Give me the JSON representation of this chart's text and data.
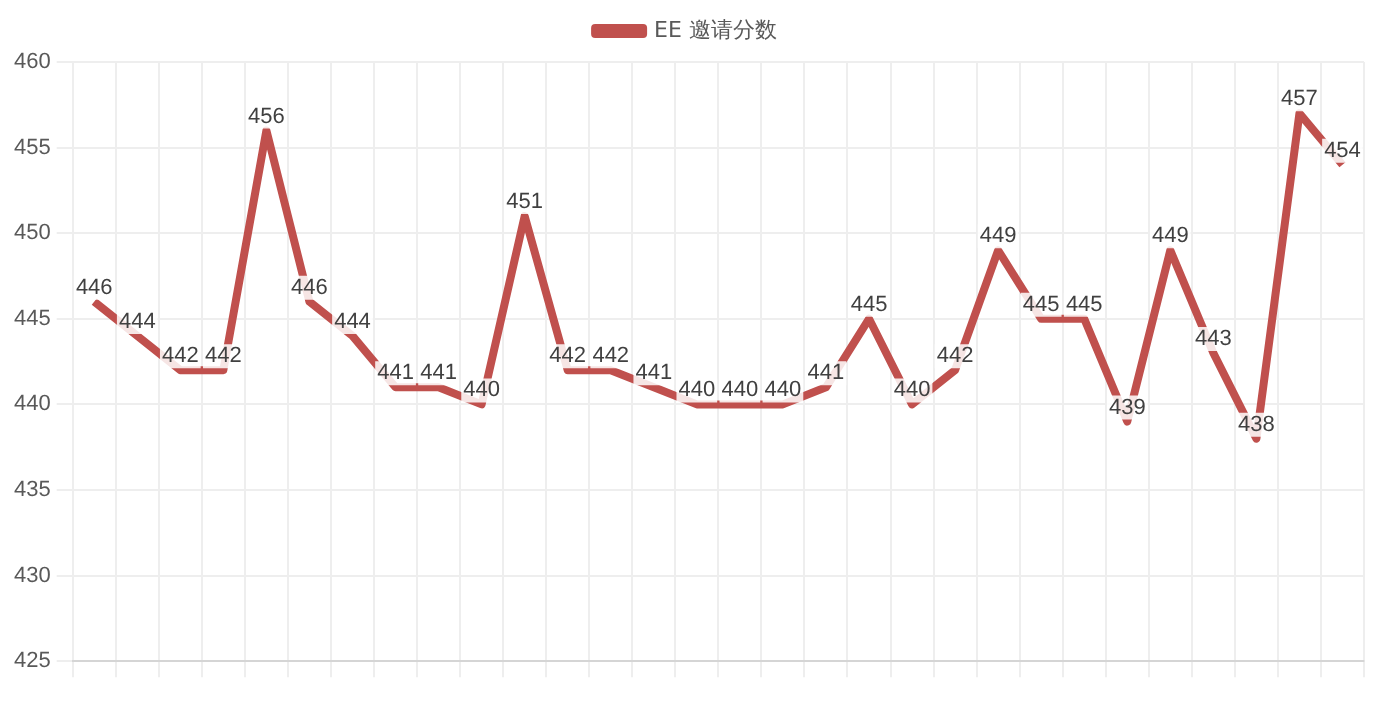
{
  "chart_data": {
    "type": "line",
    "categories": [
      null,
      null,
      null,
      null,
      null,
      null,
      null,
      null,
      null,
      null,
      null,
      null,
      null,
      null,
      null,
      null,
      null,
      null,
      null,
      null,
      null,
      null,
      null,
      null,
      null,
      null,
      null,
      null,
      null,
      null
    ],
    "series": [
      {
        "name": "EE 邀请分数",
        "color": "#c0504d",
        "values": [
          446,
          444,
          442,
          442,
          456,
          446,
          444,
          441,
          441,
          440,
          451,
          442,
          442,
          441,
          440,
          440,
          440,
          441,
          445,
          440,
          442,
          449,
          445,
          445,
          439,
          449,
          443,
          438,
          457,
          454
        ]
      }
    ],
    "ylim": [
      425,
      460
    ],
    "yticks": [
      425,
      430,
      435,
      440,
      445,
      450,
      455,
      460
    ],
    "grid": true,
    "legend": "top",
    "marker": "none",
    "line_style": "solid",
    "data_labels": true
  }
}
